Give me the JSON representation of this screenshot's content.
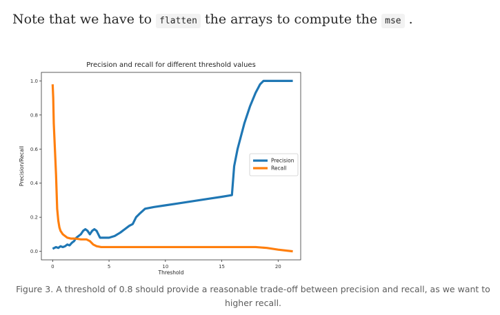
{
  "intro": {
    "before": "Note that we have to ",
    "code1": "flatten",
    "middle": " the arrays to compute the ",
    "code2": "mse",
    "after": " ."
  },
  "caption": "Figure 3. A threshold of 0.8 should provide a reasonable trade-off between precision and recall, as we want to higher recall.",
  "chart_data": {
    "type": "line",
    "title": "Precision and recall for different threshold values",
    "xlabel": "Threshold",
    "ylabel": "Precision/Recall",
    "xlim": [
      -1,
      22
    ],
    "ylim": [
      -0.05,
      1.05
    ],
    "xticks": [
      0,
      5,
      10,
      15,
      20
    ],
    "yticks": [
      0.0,
      0.2,
      0.4,
      0.6,
      0.8,
      1.0
    ],
    "xtick_labels": [
      "0",
      "5",
      "10",
      "15",
      "20"
    ],
    "ytick_labels": [
      "0.0",
      "0.2",
      "0.4",
      "0.6",
      "0.8",
      "1.0"
    ],
    "grid": false,
    "legend": "center-right",
    "series": [
      {
        "name": "Precision",
        "color": "#1f77b4",
        "x": [
          0.0,
          0.3,
          0.5,
          0.7,
          0.9,
          1.1,
          1.3,
          1.5,
          1.7,
          1.9,
          2.1,
          2.3,
          2.5,
          2.7,
          2.9,
          3.1,
          3.3,
          3.5,
          3.7,
          3.9,
          4.2,
          4.5,
          5.0,
          5.5,
          6.0,
          6.2,
          6.4,
          6.8,
          7.1,
          7.4,
          7.7,
          8.2,
          9.0,
          10.0,
          11.0,
          12.0,
          13.0,
          14.0,
          15.0,
          15.9,
          16.1,
          16.4,
          17.0,
          17.5,
          18.0,
          18.4,
          18.7,
          19.0,
          20.0,
          21.0,
          21.3
        ],
        "values": [
          0.015,
          0.025,
          0.02,
          0.03,
          0.025,
          0.03,
          0.04,
          0.035,
          0.05,
          0.06,
          0.08,
          0.09,
          0.1,
          0.12,
          0.13,
          0.12,
          0.1,
          0.12,
          0.13,
          0.12,
          0.08,
          0.08,
          0.08,
          0.09,
          0.11,
          0.12,
          0.13,
          0.15,
          0.16,
          0.2,
          0.22,
          0.25,
          0.26,
          0.27,
          0.28,
          0.29,
          0.3,
          0.31,
          0.32,
          0.33,
          0.5,
          0.6,
          0.75,
          0.85,
          0.93,
          0.98,
          1.0,
          1.0,
          1.0,
          1.0,
          1.0
        ]
      },
      {
        "name": "Recall",
        "color": "#ff7f0e",
        "x": [
          0.0,
          0.05,
          0.1,
          0.2,
          0.3,
          0.4,
          0.5,
          0.6,
          0.7,
          0.9,
          1.1,
          1.3,
          1.6,
          2.0,
          2.5,
          3.0,
          3.3,
          3.6,
          3.9,
          4.3,
          5.0,
          6.0,
          8.0,
          10.0,
          12.0,
          14.0,
          16.0,
          18.0,
          19.0,
          20.0,
          21.3
        ],
        "values": [
          0.98,
          0.9,
          0.75,
          0.6,
          0.45,
          0.25,
          0.18,
          0.14,
          0.12,
          0.1,
          0.09,
          0.08,
          0.075,
          0.075,
          0.07,
          0.07,
          0.06,
          0.04,
          0.03,
          0.025,
          0.025,
          0.025,
          0.025,
          0.025,
          0.025,
          0.025,
          0.025,
          0.025,
          0.02,
          0.01,
          0.0
        ]
      }
    ]
  }
}
